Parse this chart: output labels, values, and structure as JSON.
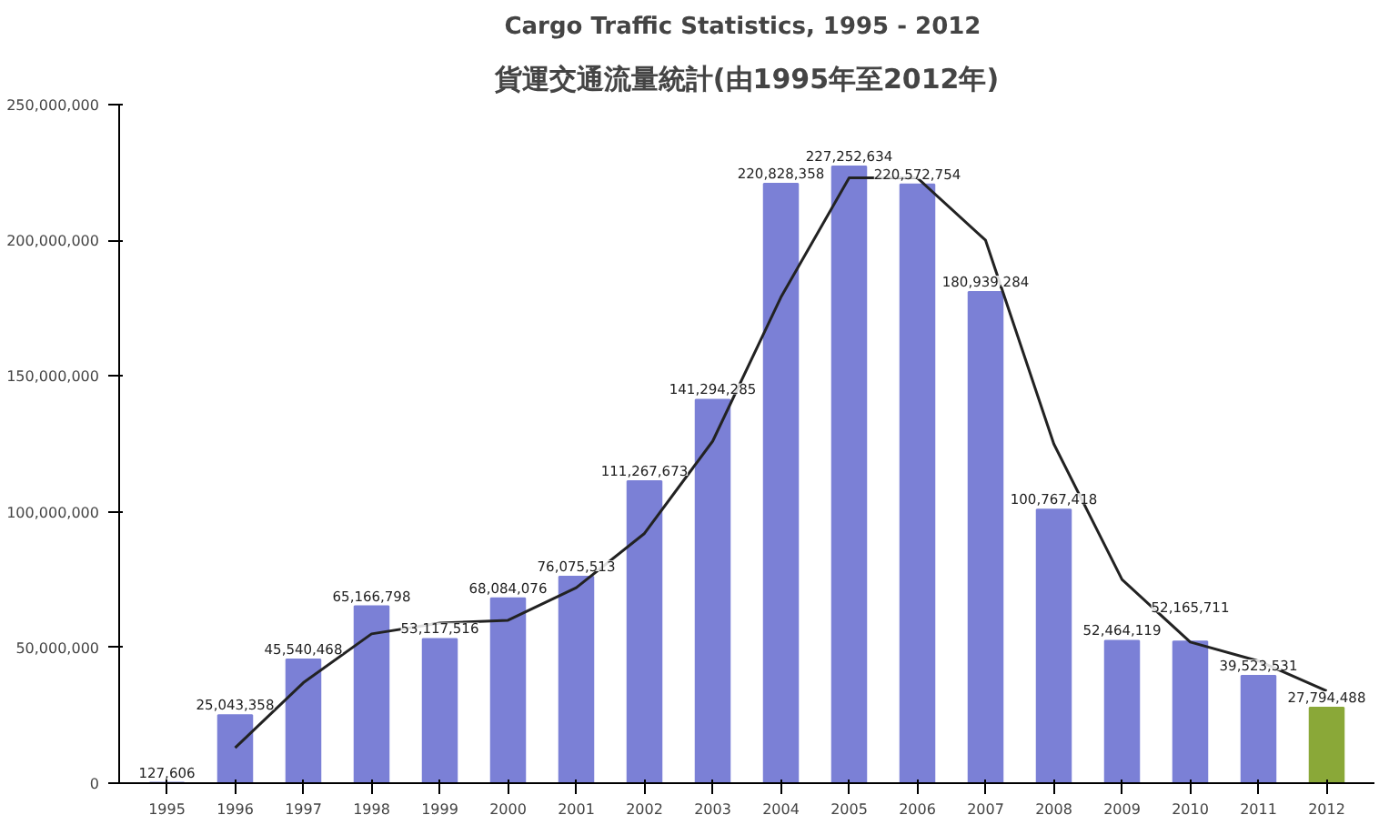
{
  "chart_data": {
    "type": "bar",
    "title": "Cargo Traffic Statistics, 1995 -  2012",
    "subtitle": "貨運交通流量統計(由1995年至2012年)",
    "categories": [
      "1995",
      "1996",
      "1997",
      "1998",
      "1999",
      "2000",
      "2001",
      "2002",
      "2003",
      "2004",
      "2005",
      "2006",
      "2007",
      "2008",
      "2009",
      "2010",
      "2011",
      "2012"
    ],
    "ylim": [
      0,
      250000000
    ],
    "yticks": [
      {
        "value": 0,
        "label": "0"
      },
      {
        "value": 50000000,
        "label": "50,000,000"
      },
      {
        "value": 100000000,
        "label": "100,000,000"
      },
      {
        "value": 150000000,
        "label": "150,000,000"
      },
      {
        "value": 200000000,
        "label": "200,000,000"
      },
      {
        "value": 250000000,
        "label": "250,000,000"
      }
    ],
    "grid": false,
    "series": [
      {
        "colors": [
          "#7b80d6",
          "#7b80d6",
          "#7b80d6",
          "#7b80d6",
          "#7b80d6",
          "#7b80d6",
          "#7b80d6",
          "#7b80d6",
          "#7b80d6",
          "#7b80d6",
          "#7b80d6",
          "#7b80d6",
          "#7b80d6",
          "#7b80d6",
          "#7b80d6",
          "#7b80d6",
          "#7b80d6",
          "#8aa838"
        ],
        "values": [
          127606,
          25043358,
          45540468,
          65166798,
          53117516,
          68084076,
          76075513,
          111267673,
          141294285,
          220828358,
          227252634,
          220572754,
          180939284,
          100767418,
          52464119,
          52165711,
          39523531,
          27794488
        ],
        "value_labels": [
          "127,606",
          "25,043,358",
          "45,540,468",
          "65,166,798",
          "53,117,516",
          "68,084,076",
          "76,075,513",
          "111,267,673",
          "141,294,285",
          "220,828,358",
          "227,252,634",
          "220,572,754",
          "180,939,284",
          "100,767,418",
          "52,464,119",
          "52,165,711",
          "39,523,531",
          "27,794,488"
        ]
      },
      {
        "type": "line",
        "color": "#222222",
        "values": [
          null,
          13000000,
          37000000,
          55000000,
          59000000,
          60000000,
          72000000,
          92000000,
          126000000,
          179000000,
          223000000,
          223000000,
          200000000,
          125000000,
          75000000,
          52000000,
          45000000,
          34000000
        ]
      }
    ]
  }
}
